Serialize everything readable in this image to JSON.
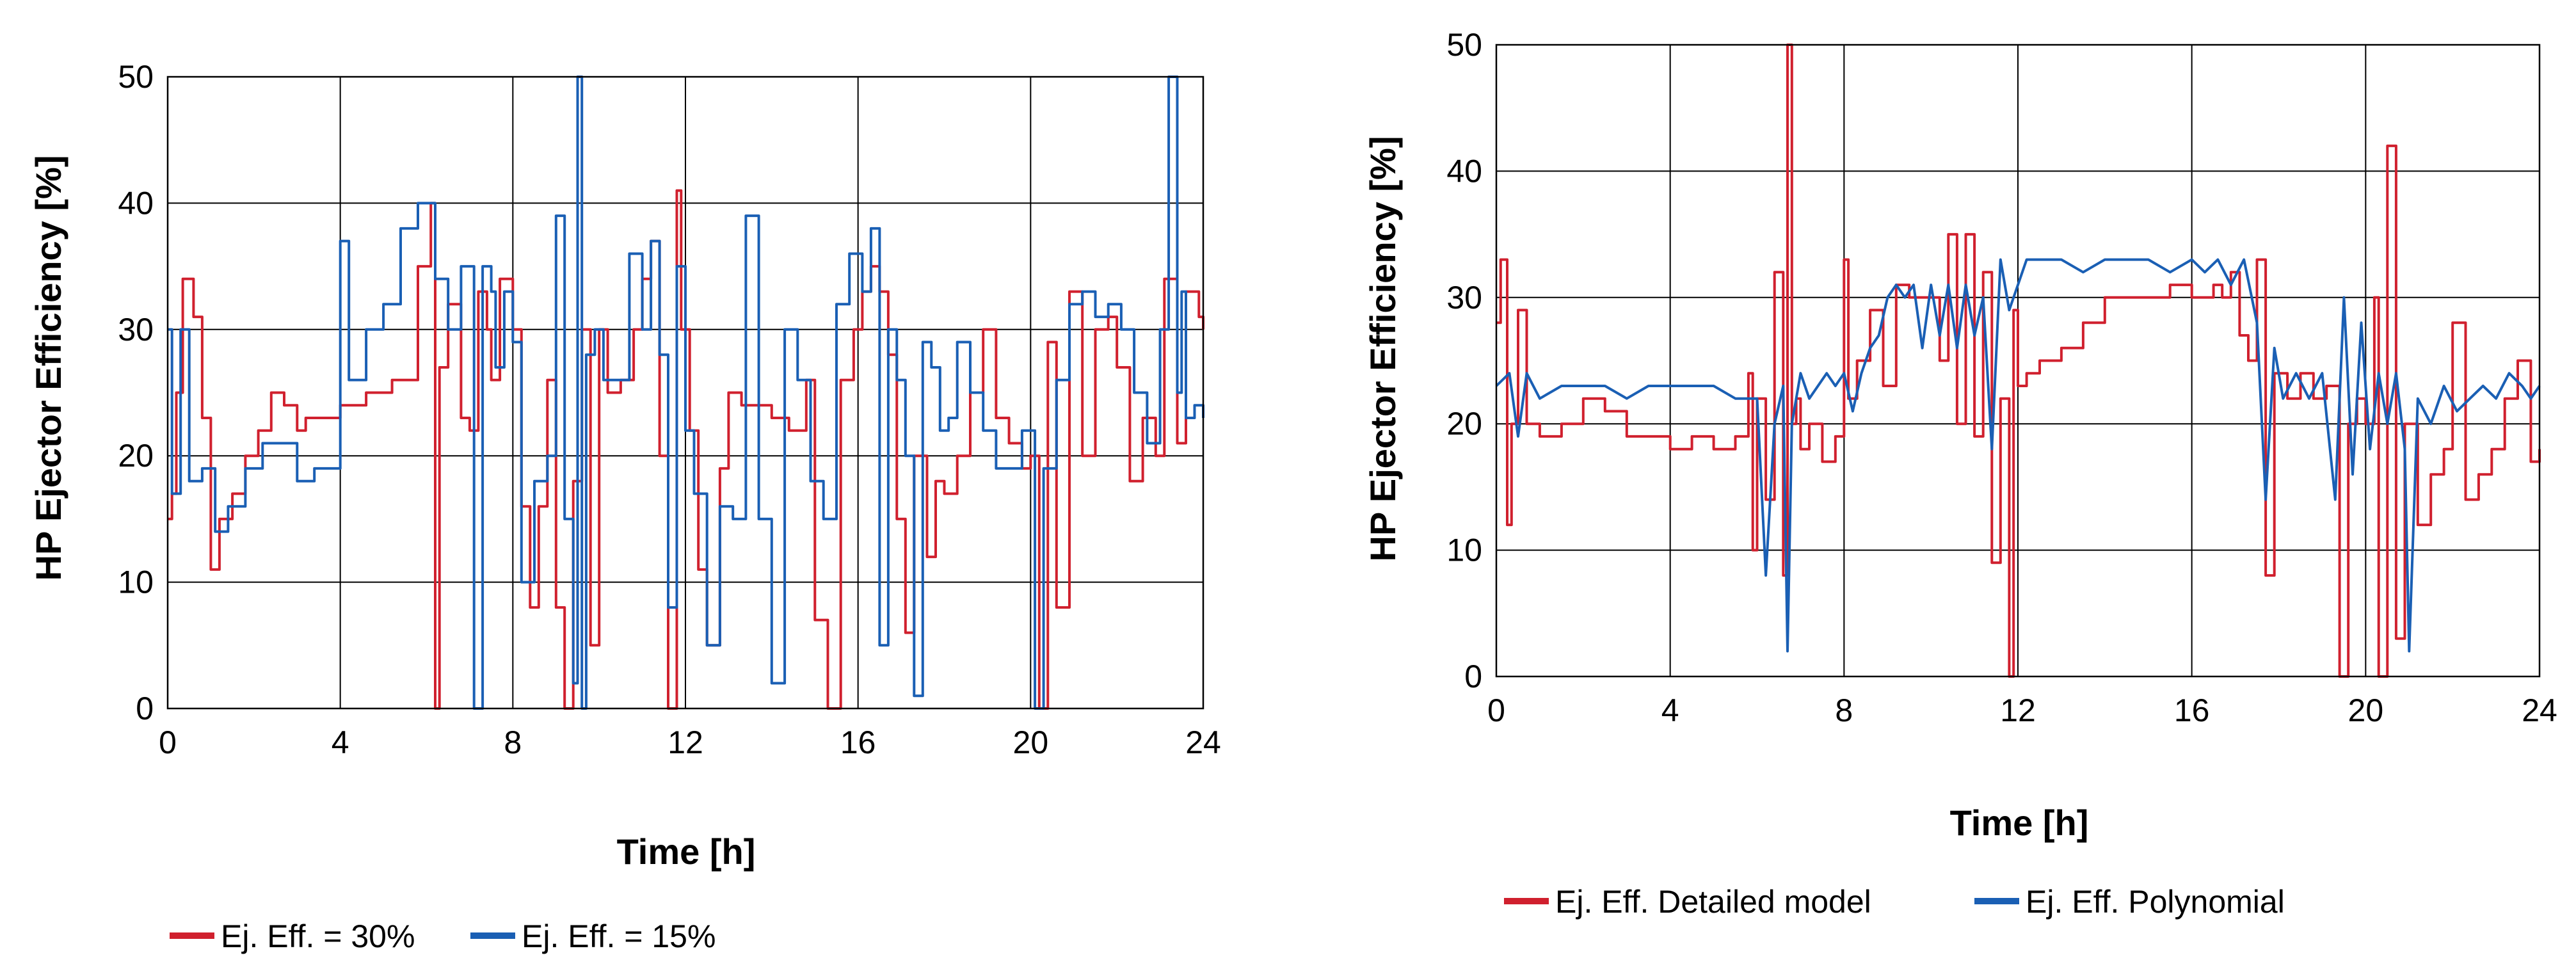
{
  "chart_data": [
    {
      "type": "line",
      "title": "",
      "xlabel": "Time [h]",
      "ylabel": "HP Ejector Efficiency [%]",
      "xlim": [
        0,
        24
      ],
      "ylim": [
        0,
        50
      ],
      "xticks": [
        0,
        4,
        8,
        12,
        16,
        20,
        24
      ],
      "yticks": [
        0,
        10,
        20,
        30,
        40,
        50
      ],
      "grid": true,
      "legend_position": "bottom-left",
      "series": [
        {
          "name": "Ej. Eff. = 30%",
          "color": "#d0202e",
          "step": true,
          "x": [
            0,
            0.1,
            0.2,
            0.35,
            0.6,
            0.8,
            1.0,
            1.2,
            1.5,
            1.8,
            2.1,
            2.4,
            2.7,
            3.0,
            3.2,
            3.5,
            4.0,
            4.6,
            5.2,
            5.8,
            6.1,
            6.2,
            6.3,
            6.5,
            6.8,
            7.0,
            7.2,
            7.4,
            7.5,
            7.7,
            8.0,
            8.2,
            8.4,
            8.6,
            8.8,
            9.0,
            9.2,
            9.4,
            9.6,
            9.8,
            10.0,
            10.2,
            10.5,
            10.8,
            11.0,
            11.2,
            11.4,
            11.6,
            11.8,
            11.9,
            12.1,
            12.3,
            12.5,
            12.8,
            13.0,
            13.3,
            13.6,
            14.0,
            14.4,
            14.8,
            15.0,
            15.3,
            15.6,
            15.9,
            16.1,
            16.3,
            16.5,
            16.7,
            16.9,
            17.1,
            17.3,
            17.6,
            17.8,
            18.0,
            18.3,
            18.6,
            18.9,
            19.2,
            19.5,
            19.8,
            20.0,
            20.2,
            20.4,
            20.6,
            20.9,
            21.2,
            21.5,
            21.8,
            22.0,
            22.3,
            22.6,
            22.9,
            23.1,
            23.4,
            23.6,
            23.9,
            24.0
          ],
          "values": [
            15,
            17,
            25,
            34,
            31,
            23,
            11,
            15,
            17,
            20,
            22,
            25,
            24,
            22,
            23,
            23,
            24,
            25,
            26,
            35,
            40,
            0,
            27,
            32,
            23,
            22,
            33,
            30,
            26,
            34,
            30,
            16,
            8,
            16,
            26,
            8,
            0,
            18,
            30,
            5,
            30,
            25,
            26,
            30,
            34,
            37,
            20,
            0,
            41,
            30,
            22,
            11,
            5,
            19,
            25,
            24,
            24,
            23,
            22,
            26,
            7,
            0,
            26,
            30,
            33,
            35,
            33,
            28,
            15,
            6,
            20,
            12,
            18,
            17,
            20,
            25,
            30,
            23,
            21,
            19,
            20,
            0,
            29,
            8,
            33,
            20,
            30,
            31,
            27,
            18,
            23,
            20,
            34,
            21,
            33,
            31,
            30
          ]
        },
        {
          "name": "Ej. Eff. = 15%",
          "color": "#1a5fb4",
          "step": true,
          "x": [
            0,
            0.1,
            0.3,
            0.5,
            0.8,
            1.1,
            1.4,
            1.8,
            2.2,
            2.6,
            3.0,
            3.4,
            3.8,
            4.0,
            4.2,
            4.6,
            5.0,
            5.4,
            5.8,
            6.0,
            6.2,
            6.5,
            6.8,
            7.1,
            7.3,
            7.5,
            7.6,
            7.8,
            8.0,
            8.2,
            8.5,
            8.8,
            9.0,
            9.2,
            9.4,
            9.5,
            9.6,
            9.7,
            9.9,
            10.1,
            10.4,
            10.7,
            11.0,
            11.2,
            11.4,
            11.6,
            11.8,
            12.0,
            12.2,
            12.5,
            12.8,
            13.1,
            13.4,
            13.7,
            14.0,
            14.3,
            14.6,
            14.9,
            15.2,
            15.5,
            15.8,
            16.1,
            16.3,
            16.5,
            16.7,
            16.9,
            17.1,
            17.3,
            17.5,
            17.7,
            17.9,
            18.1,
            18.3,
            18.6,
            18.9,
            19.2,
            19.5,
            19.8,
            20.1,
            20.3,
            20.6,
            20.9,
            21.2,
            21.5,
            21.8,
            22.1,
            22.4,
            22.7,
            23.0,
            23.2,
            23.4,
            23.5,
            23.6,
            23.8,
            24.0
          ],
          "values": [
            30,
            17,
            30,
            18,
            19,
            14,
            16,
            19,
            21,
            21,
            18,
            19,
            19,
            37,
            26,
            30,
            32,
            38,
            40,
            40,
            34,
            30,
            35,
            0,
            35,
            33,
            27,
            33,
            29,
            10,
            18,
            20,
            39,
            15,
            2,
            50,
            0,
            28,
            30,
            26,
            26,
            36,
            30,
            37,
            28,
            8,
            35,
            22,
            17,
            5,
            16,
            15,
            39,
            15,
            2,
            30,
            26,
            18,
            15,
            32,
            36,
            33,
            38,
            5,
            30,
            26,
            20,
            1,
            29,
            27,
            22,
            23,
            29,
            25,
            22,
            19,
            19,
            22,
            0,
            19,
            26,
            32,
            33,
            31,
            32,
            30,
            25,
            21,
            30,
            50,
            25,
            33,
            23,
            24,
            23
          ]
        }
      ]
    },
    {
      "type": "line",
      "title": "",
      "xlabel": "Time [h]",
      "ylabel": "HP Ejector Efficiency [%]",
      "xlim": [
        0,
        24
      ],
      "ylim": [
        0,
        50
      ],
      "xticks": [
        0,
        4,
        8,
        12,
        16,
        20,
        24
      ],
      "yticks": [
        0,
        10,
        20,
        30,
        40,
        50
      ],
      "grid": true,
      "legend_position": "bottom-center",
      "series": [
        {
          "name": "Ej. Eff. Detailed model",
          "color": "#d0202e",
          "step": true,
          "x": [
            0,
            0.1,
            0.25,
            0.35,
            0.5,
            0.7,
            1.0,
            1.5,
            2.0,
            2.5,
            3.0,
            3.5,
            4.0,
            4.5,
            5.0,
            5.5,
            5.8,
            5.9,
            6.0,
            6.2,
            6.4,
            6.6,
            6.7,
            6.8,
            6.9,
            7.0,
            7.2,
            7.5,
            7.8,
            8.0,
            8.1,
            8.3,
            8.6,
            8.9,
            9.2,
            9.5,
            10.0,
            10.2,
            10.4,
            10.6,
            10.8,
            11.0,
            11.2,
            11.4,
            11.6,
            11.8,
            11.9,
            12.0,
            12.2,
            12.5,
            13.0,
            13.5,
            14.0,
            14.5,
            15.0,
            15.5,
            16.0,
            16.5,
            16.7,
            16.9,
            17.1,
            17.3,
            17.5,
            17.7,
            17.9,
            18.2,
            18.5,
            18.8,
            19.1,
            19.4,
            19.6,
            19.8,
            20.0,
            20.2,
            20.3,
            20.5,
            20.7,
            20.9,
            21.2,
            21.5,
            21.8,
            22.0,
            22.3,
            22.6,
            22.9,
            23.2,
            23.5,
            23.8,
            24.0
          ],
          "values": [
            28,
            33,
            12,
            20,
            29,
            20,
            19,
            20,
            22,
            21,
            19,
            19,
            18,
            19,
            18,
            19,
            24,
            10,
            22,
            14,
            32,
            8,
            50,
            20,
            22,
            18,
            20,
            17,
            19,
            33,
            22,
            25,
            29,
            23,
            31,
            30,
            30,
            25,
            35,
            20,
            35,
            19,
            32,
            9,
            22,
            0,
            29,
            23,
            24,
            25,
            26,
            28,
            30,
            30,
            30,
            31,
            30,
            31,
            30,
            32,
            27,
            25,
            33,
            8,
            24,
            22,
            24,
            22,
            23,
            0,
            20,
            22,
            20,
            30,
            0,
            42,
            3,
            20,
            12,
            16,
            18,
            28,
            14,
            16,
            18,
            22,
            25,
            17,
            18
          ]
        },
        {
          "name": "Ej. Eff. Polynomial",
          "color": "#1a5fb4",
          "step": false,
          "x": [
            0,
            0.3,
            0.5,
            0.7,
            1.0,
            1.5,
            2.0,
            2.5,
            3.0,
            3.5,
            4.0,
            4.5,
            5.0,
            5.5,
            5.8,
            6.0,
            6.2,
            6.4,
            6.6,
            6.7,
            6.8,
            6.9,
            7.0,
            7.2,
            7.4,
            7.6,
            7.8,
            8.0,
            8.2,
            8.4,
            8.6,
            8.8,
            9.0,
            9.2,
            9.4,
            9.6,
            9.8,
            10.0,
            10.2,
            10.4,
            10.6,
            10.8,
            11.0,
            11.2,
            11.4,
            11.6,
            11.8,
            12.0,
            12.2,
            12.5,
            13.0,
            13.5,
            14.0,
            14.5,
            15.0,
            15.5,
            16.0,
            16.3,
            16.6,
            16.9,
            17.2,
            17.5,
            17.7,
            17.9,
            18.1,
            18.4,
            18.7,
            19.0,
            19.3,
            19.5,
            19.7,
            19.9,
            20.1,
            20.3,
            20.5,
            20.7,
            20.9,
            21.0,
            21.2,
            21.5,
            21.8,
            22.1,
            22.4,
            22.7,
            23.0,
            23.3,
            23.6,
            23.8,
            24.0
          ],
          "values": [
            23,
            24,
            19,
            24,
            22,
            23,
            23,
            23,
            22,
            23,
            23,
            23,
            23,
            22,
            22,
            22,
            8,
            20,
            23,
            2,
            20,
            22,
            24,
            22,
            23,
            24,
            23,
            24,
            21,
            24,
            26,
            27,
            30,
            31,
            30,
            31,
            26,
            31,
            27,
            31,
            26,
            31,
            27,
            30,
            18,
            33,
            29,
            31,
            33,
            33,
            33,
            32,
            33,
            33,
            33,
            32,
            33,
            32,
            33,
            31,
            33,
            28,
            14,
            26,
            22,
            24,
            22,
            24,
            14,
            30,
            16,
            28,
            18,
            24,
            20,
            24,
            18,
            2,
            22,
            20,
            23,
            21,
            22,
            23,
            22,
            24,
            23,
            22,
            23
          ]
        }
      ]
    }
  ]
}
